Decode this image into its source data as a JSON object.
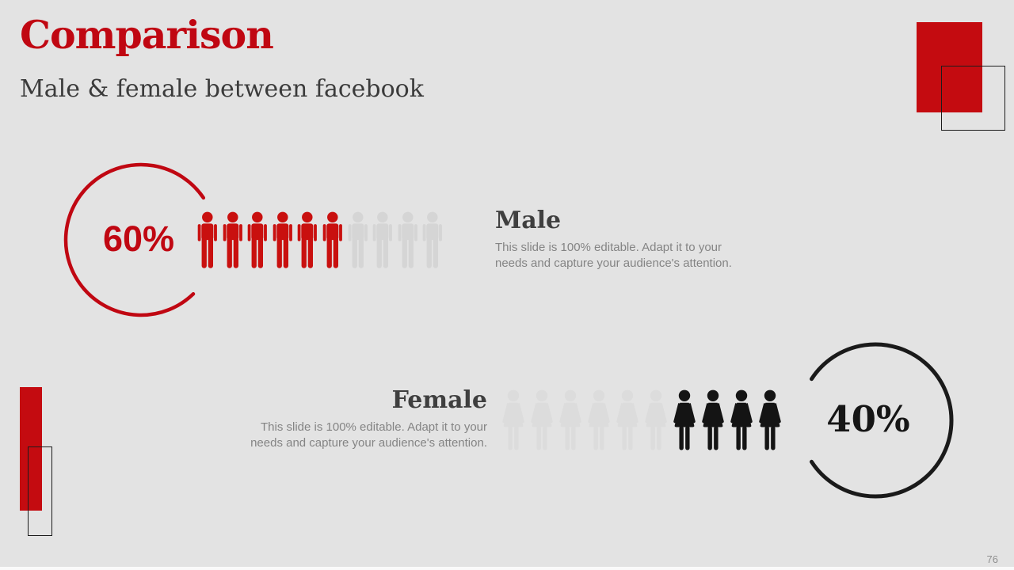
{
  "slide": {
    "title": "Comparison",
    "subtitle": "Male & female between facebook",
    "page_number": "76",
    "background_color": "#e3e3e3",
    "accent_red": "#c00712",
    "heading_color": "#3f3f3f",
    "body_text_color": "#848484"
  },
  "male": {
    "label": "Male",
    "percent": "60%",
    "description_lines": [
      "This slide is 100% editable. Adapt it to your",
      "needs and capture your audience's attention."
    ],
    "icons_total": 10,
    "icons_filled": 6,
    "fill_direction": "left",
    "filled_color": "#c9100f",
    "empty_color": "#d5d5d5",
    "ring_color": "#c00712"
  },
  "female": {
    "label": "Female",
    "percent": "40%",
    "description_lines": [
      "This slide is 100% editable. Adapt it to your",
      "needs and capture your audience's attention."
    ],
    "icons_total": 10,
    "icons_filled": 4,
    "fill_direction": "right",
    "filled_color": "#141414",
    "empty_color": "#dcdcdc",
    "ring_color": "#1a1a1a"
  },
  "chart_data": {
    "type": "bar",
    "subtype": "pictograph-unit-chart",
    "title": "Comparison",
    "subtitle": "Male & female between facebook",
    "categories": [
      "Male",
      "Female"
    ],
    "values": [
      60,
      40
    ],
    "value_labels": [
      "60%",
      "40%"
    ],
    "units_per_category": 10,
    "units_filled": [
      6,
      4
    ],
    "series_colors": [
      "#c9100f",
      "#141414"
    ],
    "legend_position": "none"
  }
}
